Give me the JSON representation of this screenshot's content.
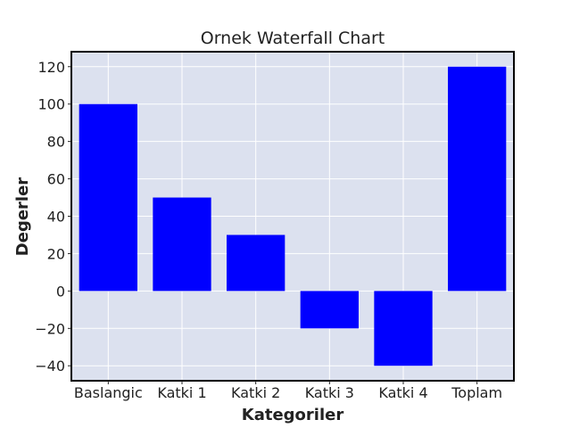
{
  "chart_data": {
    "type": "bar",
    "title": "Ornek Waterfall Chart",
    "xlabel": "Kategoriler",
    "ylabel": "Degerler",
    "categories": [
      "Baslangic",
      "Katki 1",
      "Katki 2",
      "Katki 3",
      "Katki 4",
      "Toplam"
    ],
    "values": [
      100,
      50,
      30,
      -20,
      -40,
      120
    ],
    "ylim": [
      -48,
      128
    ],
    "yticks": [
      -40,
      -20,
      0,
      20,
      40,
      60,
      80,
      100,
      120
    ],
    "ytick_labels": [
      "−40",
      "−20",
      "0",
      "20",
      "40",
      "60",
      "80",
      "100",
      "120"
    ],
    "grid": true,
    "legend": false,
    "bar_color": "#0000ff",
    "plot_background": "#dce1ef",
    "grid_color": "#ffffff"
  }
}
